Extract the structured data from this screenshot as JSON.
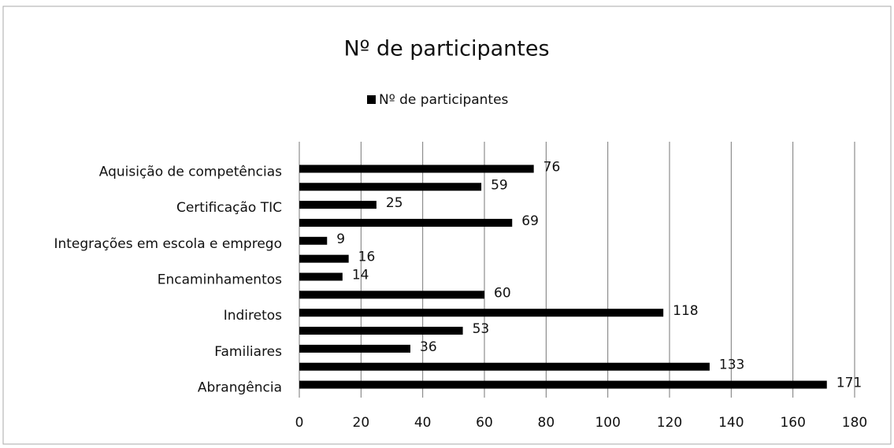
{
  "chart_data": {
    "type": "bar",
    "orientation": "horizontal",
    "title": "Nº de participantes",
    "categories": [
      "Aquisição de competências",
      null,
      "Certificação TIC",
      null,
      "Integrações em escola e emprego",
      null,
      "Encaminhamentos",
      null,
      "Indiretos",
      null,
      "Familiares",
      null,
      "Abrangência"
    ],
    "series": [
      {
        "name": "Nº de participantes",
        "color": "#000000",
        "values": [
          76,
          59,
          25,
          69,
          9,
          16,
          14,
          60,
          118,
          53,
          36,
          133,
          171
        ]
      }
    ],
    "xlim": [
      0,
      180
    ],
    "xticks": [
      0,
      20,
      40,
      60,
      80,
      100,
      120,
      140,
      160,
      180
    ],
    "grid": true,
    "legend": "top"
  }
}
